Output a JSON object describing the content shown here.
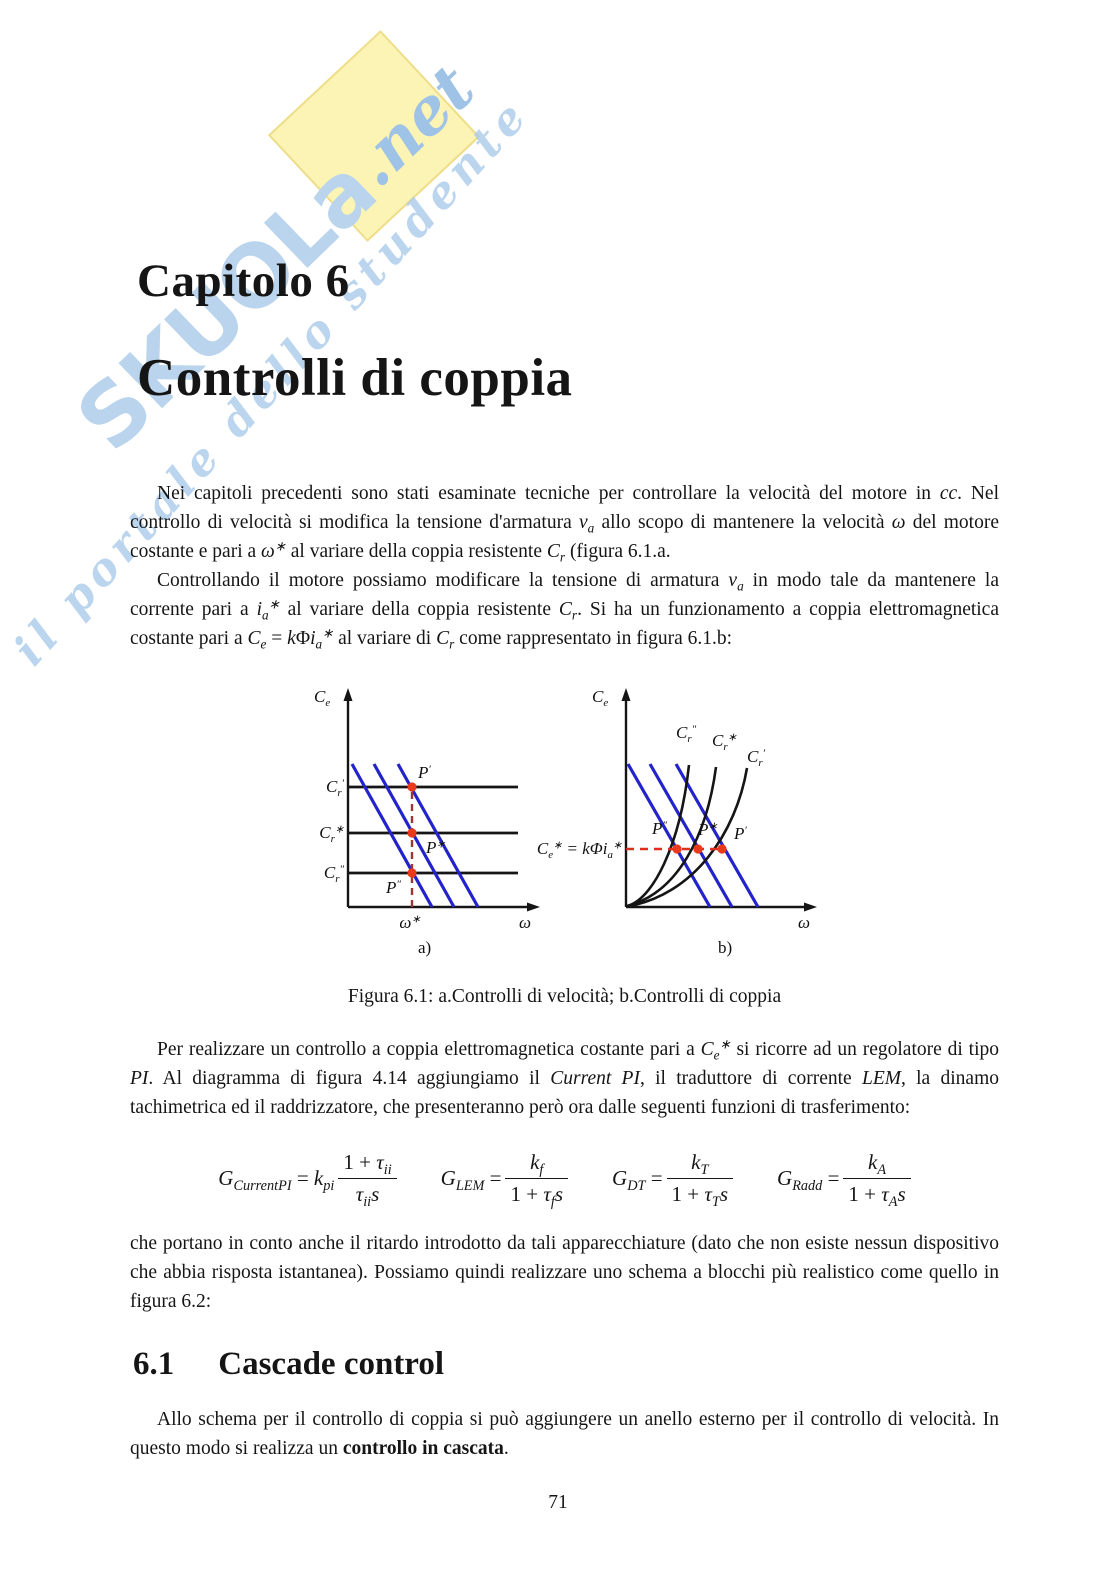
{
  "watermark": {
    "brand": "SKUOLa",
    "net": ".net",
    "tagline": "il portale dello studente",
    "brand_color": "#b9d4ec",
    "net_color": "#9fc3e6",
    "yellow_color": "#fbf4b4"
  },
  "chapter": {
    "kicker": "Capitolo 6",
    "title": "Controlli di coppia"
  },
  "paragraphs": {
    "p1": [
      [
        "r",
        "Nei capitoli precedenti sono stati esaminate tecniche per controllare la velocità del motore in "
      ],
      [
        "i",
        "cc"
      ],
      [
        "r",
        ". Nel controllo di velocità si modifica la tensione d'armatura "
      ],
      [
        "i",
        "v"
      ],
      [
        "sub",
        "a"
      ],
      [
        "r",
        " allo scopo di mantenere la velocità "
      ],
      [
        "i",
        "ω"
      ],
      [
        "r",
        " del motore costante e pari a "
      ],
      [
        "i",
        "ω"
      ],
      [
        "sup",
        "∗"
      ],
      [
        "r",
        " al variare della coppia resistente "
      ],
      [
        "i",
        "C"
      ],
      [
        "sub",
        "r"
      ],
      [
        "r",
        " (figura 6.1.a."
      ]
    ],
    "p2": [
      [
        "r",
        "Controllando il motore possiamo modificare la tensione di armatura "
      ],
      [
        "i",
        "v"
      ],
      [
        "sub",
        "a"
      ],
      [
        "r",
        " in modo tale da mantenere la corrente pari a "
      ],
      [
        "i",
        "i"
      ],
      [
        "sub",
        "a"
      ],
      [
        "sup",
        "∗"
      ],
      [
        "r",
        " al variare della coppia resistente "
      ],
      [
        "i",
        "C"
      ],
      [
        "sub",
        "r"
      ],
      [
        "r",
        ". Si ha un funzionamento a coppia elettromagnetica costante pari a "
      ],
      [
        "i",
        "C"
      ],
      [
        "sub",
        "e"
      ],
      [
        "r",
        " = "
      ],
      [
        "i",
        "k"
      ],
      [
        "r",
        "Φ"
      ],
      [
        "i",
        "i"
      ],
      [
        "sub",
        "a"
      ],
      [
        "sup",
        "∗"
      ],
      [
        "r",
        " al variare di "
      ],
      [
        "i",
        "C"
      ],
      [
        "sub",
        "r"
      ],
      [
        "r",
        " come rappresentato in figura 6.1.b:"
      ]
    ],
    "p3": [
      [
        "r",
        "Per realizzare un controllo a coppia elettromagnetica costante pari a "
      ],
      [
        "i",
        "C"
      ],
      [
        "sub",
        "e"
      ],
      [
        "sup",
        "∗"
      ],
      [
        "r",
        " si ricorre ad un regolatore di tipo "
      ],
      [
        "i",
        "PI"
      ],
      [
        "r",
        ". Al diagramma di figura 4.14 aggiungiamo il "
      ],
      [
        "i",
        "Current PI"
      ],
      [
        "r",
        ", il traduttore di corrente "
      ],
      [
        "i",
        "LEM"
      ],
      [
        "r",
        ", la dinamo tachimetrica ed il raddrizzatore, che presenteranno però ora dalle seguenti funzioni di trasferimento:"
      ]
    ],
    "p4": [
      [
        "r",
        "che portano in conto anche il ritardo introdotto da tali apparecchiature (dato che non esiste nessun dispositivo che abbia risposta istantanea). Possiamo quindi realizzare uno schema a blocchi più realistico come quello in figura 6.2:"
      ]
    ],
    "p5": [
      [
        "r",
        "Allo schema per il controllo di coppia si può aggiungere un anello esterno per il controllo di velocità. In questo modo si realizza un "
      ],
      [
        "b",
        "controllo in cascata"
      ],
      [
        "r",
        "."
      ]
    ]
  },
  "figure": {
    "caption": "Figura 6.1: a.Controlli di velocità; b.Controlli di coppia",
    "colors": {
      "characteristic_blue": "#2323cb",
      "dash_left": "#9a3733",
      "dash_right": "#dd2f1c",
      "operating_point_red": "#e93a1c"
    },
    "left": {
      "y_label": [
        [
          "i",
          "C"
        ],
        [
          "sub",
          "e"
        ]
      ],
      "line_labels": [
        [
          [
            "i",
            "C"
          ],
          [
            "sub",
            "r"
          ],
          [
            "sup",
            "′"
          ]
        ],
        [
          [
            "i",
            "C"
          ],
          [
            "sub",
            "r"
          ],
          [
            "sup",
            "∗"
          ]
        ],
        [
          [
            "i",
            "C"
          ],
          [
            "sub",
            "r"
          ],
          [
            "sup",
            "″"
          ]
        ]
      ],
      "point_labels": [
        [
          [
            "i",
            "P"
          ],
          [
            "sup",
            "′"
          ]
        ],
        [
          [
            "i",
            "P"
          ],
          [
            "sup",
            "∗"
          ]
        ],
        [
          [
            "i",
            "P"
          ],
          [
            "sup",
            "″"
          ]
        ]
      ],
      "x_ref": [
        [
          "i",
          "ω"
        ],
        [
          "sup",
          "∗"
        ]
      ],
      "x_label": [
        [
          "i",
          "ω"
        ]
      ],
      "sub_label": "a)"
    },
    "right": {
      "y_label": [
        [
          "i",
          "C"
        ],
        [
          "sub",
          "e"
        ]
      ],
      "curve_labels": [
        [
          [
            "i",
            "C"
          ],
          [
            "sub",
            "r"
          ],
          [
            "sup",
            "″"
          ]
        ],
        [
          [
            "i",
            "C"
          ],
          [
            "sub",
            "r"
          ],
          [
            "sup",
            "∗"
          ]
        ],
        [
          [
            "i",
            "C"
          ],
          [
            "sub",
            "r"
          ],
          [
            "sup",
            "′"
          ]
        ]
      ],
      "eq_label": [
        [
          "i",
          "C"
        ],
        [
          "sub",
          "e"
        ],
        [
          "sup",
          "∗"
        ],
        [
          "r",
          " = "
        ],
        [
          "i",
          "k"
        ],
        [
          "r",
          "Φ"
        ],
        [
          "i",
          "i"
        ],
        [
          "sub",
          "a"
        ],
        [
          "sup",
          "∗"
        ]
      ],
      "point_labels": [
        [
          [
            "i",
            "P"
          ],
          [
            "sup",
            "″"
          ]
        ],
        [
          [
            "i",
            "P"
          ],
          [
            "sup",
            "∗"
          ]
        ],
        [
          [
            "i",
            "P"
          ],
          [
            "sup",
            "′"
          ]
        ]
      ],
      "x_label": [
        [
          "i",
          "ω"
        ]
      ],
      "sub_label": "b)"
    }
  },
  "formulas": [
    {
      "lhs": [
        [
          "i",
          "G"
        ],
        [
          "sub",
          "CurrentPI"
        ],
        [
          "r",
          " = "
        ],
        [
          "i",
          "k"
        ],
        [
          "sub",
          "pi"
        ]
      ],
      "num": [
        [
          "r",
          "1 + "
        ],
        [
          "i",
          "τ"
        ],
        [
          "sub",
          "ii"
        ]
      ],
      "den": [
        [
          "i",
          "τ"
        ],
        [
          "sub",
          "ii"
        ],
        [
          "i",
          "s"
        ]
      ]
    },
    {
      "lhs": [
        [
          "i",
          "G"
        ],
        [
          "sub",
          "LEM"
        ],
        [
          "r",
          " = "
        ]
      ],
      "num": [
        [
          "i",
          "k"
        ],
        [
          "sub",
          "f"
        ]
      ],
      "den": [
        [
          "r",
          "1 + "
        ],
        [
          "i",
          "τ"
        ],
        [
          "sub",
          "f"
        ],
        [
          "i",
          "s"
        ]
      ]
    },
    {
      "lhs": [
        [
          "i",
          "G"
        ],
        [
          "sub",
          "DT"
        ],
        [
          "r",
          " = "
        ]
      ],
      "num": [
        [
          "i",
          "k"
        ],
        [
          "sub",
          "T"
        ]
      ],
      "den": [
        [
          "r",
          "1 + "
        ],
        [
          "i",
          "τ"
        ],
        [
          "sub",
          "T"
        ],
        [
          "i",
          "s"
        ]
      ]
    },
    {
      "lhs": [
        [
          "i",
          "G"
        ],
        [
          "sub",
          "Radd"
        ],
        [
          "r",
          " = "
        ]
      ],
      "num": [
        [
          "i",
          "k"
        ],
        [
          "sub",
          "A"
        ]
      ],
      "den": [
        [
          "r",
          "1 + "
        ],
        [
          "i",
          "τ"
        ],
        [
          "sub",
          "A"
        ],
        [
          "i",
          "s"
        ]
      ]
    }
  ],
  "section": {
    "number": "6.1",
    "title": "Cascade control"
  },
  "page_number": "71"
}
